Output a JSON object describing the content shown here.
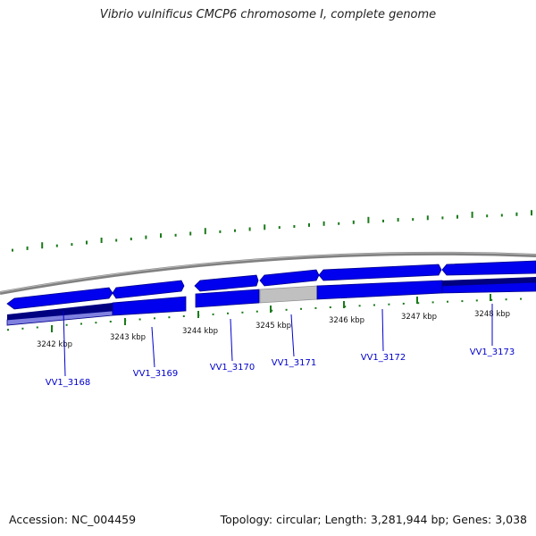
{
  "title": "Vibrio vulnificus CMCP6 chromosome I, complete genome",
  "footer": {
    "accession": "Accession: NC_004459",
    "summary": "Topology: circular; Length: 3,281,944 bp; Genes: 3,038"
  },
  "scale_labels": [
    "3242 kbp",
    "3243 kbp",
    "3244 kbp",
    "3245 kbp",
    "3246 kbp",
    "3247 kbp",
    "3248 kbp"
  ],
  "genes": [
    {
      "label": "VV1_3168"
    },
    {
      "label": "VV1_3169"
    },
    {
      "label": "VV1_3170"
    },
    {
      "label": "VV1_3171"
    },
    {
      "label": "VV1_3172"
    },
    {
      "label": "VV1_3173"
    }
  ],
  "colors": {
    "backbone": "#808080",
    "cds": "#0000ee",
    "cds_dark": "#000080",
    "cds_light": "#8080e0",
    "grey_feature": "#c0c0c0",
    "gc_ticks": "#1a7a1a",
    "label": "#0000cc",
    "text": "#111111"
  }
}
